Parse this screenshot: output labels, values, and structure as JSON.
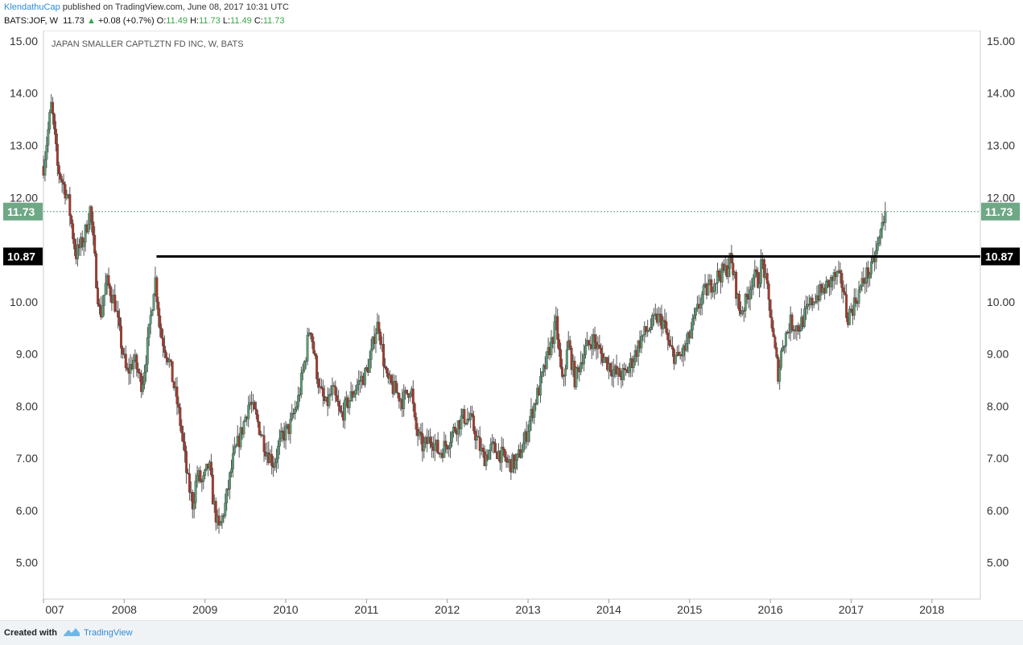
{
  "header": {
    "author": "KlendathuCap",
    "published_text": "published on TradingView.com, June 08, 2017 10:31 UTC",
    "symbol": "BATS:JOF, W",
    "last": "11.73",
    "change": "+0.08 (+0.7%)",
    "o_label": "O:",
    "o_value": "11.49",
    "h_label": "H:",
    "h_value": "11.73",
    "l_label": "L:",
    "l_value": "11.49",
    "c_label": "C:",
    "c_value": "11.73"
  },
  "footer": {
    "created_with": "Created with",
    "brand": "TradingView"
  },
  "colors": {
    "up": "#5b9c76",
    "down": "#a83a2c",
    "wick": "#555555",
    "price_line": "#5fa37c",
    "level": "#000000",
    "badge_price": "#6fa886"
  },
  "chart_data": {
    "type": "candlestick",
    "title": "JAPAN SMALLER CAPTLZTN FD INC, W, BATS",
    "y_ticks": [
      "5.00",
      "6.00",
      "7.00",
      "8.00",
      "9.00",
      "10.00",
      "12.00",
      "13.00",
      "14.00",
      "15.00"
    ],
    "y_range": [
      4.3,
      15.2
    ],
    "x_ticks": [
      "007",
      "2008",
      "2009",
      "2010",
      "2011",
      "2012",
      "2013",
      "2014",
      "2015",
      "2016",
      "2017",
      "2018"
    ],
    "x_range": [
      2007.0,
      2018.6
    ],
    "current_price": 11.73,
    "current_price_label": "11.73",
    "horizontal_level": 10.87,
    "horizontal_level_label": "10.87",
    "horizontal_level_start": 2008.4,
    "series_close_anchors": [
      [
        2007.0,
        12.6
      ],
      [
        2007.1,
        13.8
      ],
      [
        2007.17,
        12.6
      ],
      [
        2007.3,
        12.0
      ],
      [
        2007.4,
        10.9
      ],
      [
        2007.5,
        11.2
      ],
      [
        2007.58,
        11.8
      ],
      [
        2007.65,
        10.5
      ],
      [
        2007.7,
        9.7
      ],
      [
        2007.78,
        10.4
      ],
      [
        2007.88,
        10.0
      ],
      [
        2007.95,
        9.3
      ],
      [
        2008.03,
        8.6
      ],
      [
        2008.12,
        8.9
      ],
      [
        2008.22,
        8.4
      ],
      [
        2008.3,
        9.3
      ],
      [
        2008.38,
        10.5
      ],
      [
        2008.45,
        9.4
      ],
      [
        2008.55,
        8.9
      ],
      [
        2008.65,
        8.1
      ],
      [
        2008.72,
        7.4
      ],
      [
        2008.78,
        6.6
      ],
      [
        2008.85,
        6.1
      ],
      [
        2008.9,
        6.7
      ],
      [
        2008.97,
        6.5
      ],
      [
        2009.05,
        6.9
      ],
      [
        2009.1,
        6.2
      ],
      [
        2009.17,
        5.6
      ],
      [
        2009.25,
        6.1
      ],
      [
        2009.35,
        7.0
      ],
      [
        2009.45,
        7.5
      ],
      [
        2009.55,
        8.1
      ],
      [
        2009.65,
        7.7
      ],
      [
        2009.75,
        7.2
      ],
      [
        2009.85,
        6.9
      ],
      [
        2009.95,
        7.4
      ],
      [
        2010.05,
        7.6
      ],
      [
        2010.15,
        8.1
      ],
      [
        2010.25,
        9.0
      ],
      [
        2010.3,
        9.6
      ],
      [
        2010.35,
        9.0
      ],
      [
        2010.42,
        8.3
      ],
      [
        2010.5,
        8.0
      ],
      [
        2010.58,
        8.3
      ],
      [
        2010.68,
        7.8
      ],
      [
        2010.78,
        8.1
      ],
      [
        2010.88,
        8.4
      ],
      [
        2010.98,
        8.6
      ],
      [
        2011.05,
        8.9
      ],
      [
        2011.1,
        9.4
      ],
      [
        2011.15,
        9.6
      ],
      [
        2011.2,
        9.0
      ],
      [
        2011.25,
        8.5
      ],
      [
        2011.35,
        8.3
      ],
      [
        2011.45,
        8.1
      ],
      [
        2011.55,
        8.4
      ],
      [
        2011.6,
        7.6
      ],
      [
        2011.7,
        7.2
      ],
      [
        2011.8,
        7.4
      ],
      [
        2011.9,
        7.1
      ],
      [
        2012.0,
        7.3
      ],
      [
        2012.1,
        7.6
      ],
      [
        2012.2,
        7.8
      ],
      [
        2012.3,
        7.7
      ],
      [
        2012.38,
        7.3
      ],
      [
        2012.45,
        7.0
      ],
      [
        2012.55,
        7.2
      ],
      [
        2012.65,
        7.1
      ],
      [
        2012.75,
        6.9
      ],
      [
        2012.85,
        6.9
      ],
      [
        2012.95,
        7.3
      ],
      [
        2013.05,
        7.9
      ],
      [
        2013.15,
        8.4
      ],
      [
        2013.25,
        9.0
      ],
      [
        2013.35,
        9.6
      ],
      [
        2013.42,
        8.4
      ],
      [
        2013.5,
        9.2
      ],
      [
        2013.58,
        8.5
      ],
      [
        2013.68,
        9.0
      ],
      [
        2013.8,
        9.3
      ],
      [
        2013.9,
        9.0
      ],
      [
        2014.0,
        8.8
      ],
      [
        2014.1,
        8.6
      ],
      [
        2014.2,
        8.6
      ],
      [
        2014.3,
        8.9
      ],
      [
        2014.4,
        9.3
      ],
      [
        2014.5,
        9.5
      ],
      [
        2014.6,
        9.7
      ],
      [
        2014.68,
        9.6
      ],
      [
        2014.75,
        9.1
      ],
      [
        2014.85,
        8.9
      ],
      [
        2014.95,
        9.1
      ],
      [
        2015.05,
        9.6
      ],
      [
        2015.15,
        10.1
      ],
      [
        2015.25,
        10.3
      ],
      [
        2015.35,
        10.5
      ],
      [
        2015.45,
        10.6
      ],
      [
        2015.5,
        10.8
      ],
      [
        2015.55,
        10.5
      ],
      [
        2015.62,
        9.8
      ],
      [
        2015.7,
        10.0
      ],
      [
        2015.78,
        10.5
      ],
      [
        2015.85,
        10.4
      ],
      [
        2015.9,
        10.8
      ],
      [
        2015.95,
        10.3
      ],
      [
        2016.0,
        9.8
      ],
      [
        2016.05,
        9.1
      ],
      [
        2016.1,
        8.6
      ],
      [
        2016.15,
        9.2
      ],
      [
        2016.25,
        9.6
      ],
      [
        2016.35,
        9.5
      ],
      [
        2016.45,
        9.8
      ],
      [
        2016.55,
        10.1
      ],
      [
        2016.65,
        10.2
      ],
      [
        2016.75,
        10.4
      ],
      [
        2016.82,
        10.5
      ],
      [
        2016.9,
        10.3
      ],
      [
        2016.95,
        9.7
      ],
      [
        2017.02,
        9.9
      ],
      [
        2017.1,
        10.2
      ],
      [
        2017.18,
        10.5
      ],
      [
        2017.25,
        10.6
      ],
      [
        2017.3,
        10.9
      ],
      [
        2017.35,
        11.2
      ],
      [
        2017.4,
        11.6
      ],
      [
        2017.43,
        11.73
      ]
    ]
  }
}
